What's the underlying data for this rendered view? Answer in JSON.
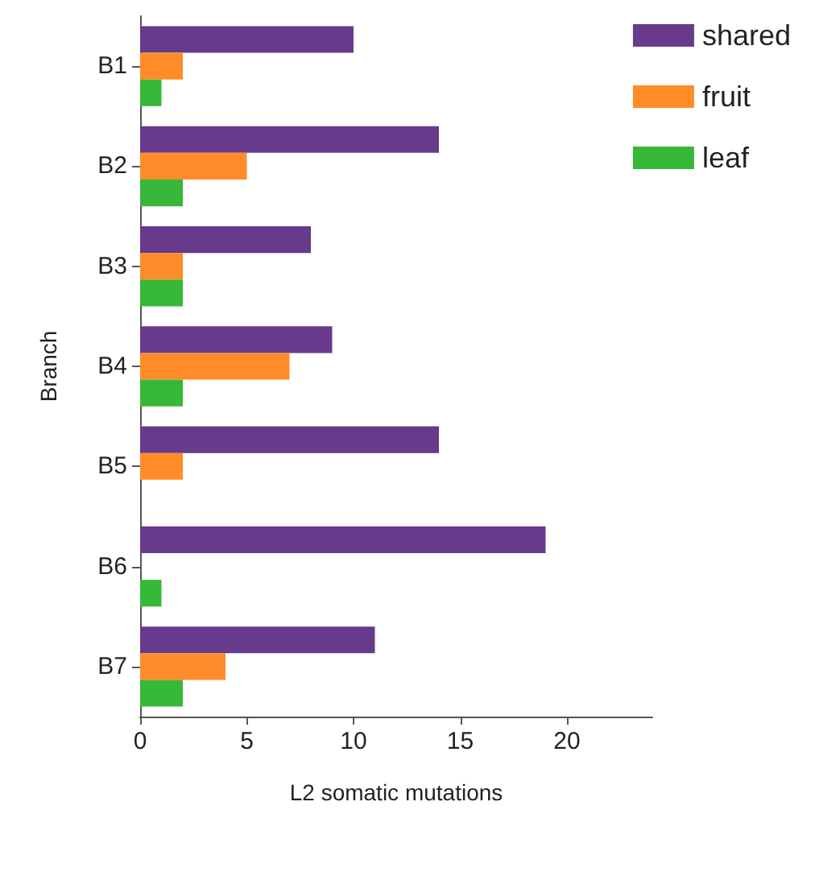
{
  "chart_data": {
    "type": "bar",
    "orientation": "horizontal",
    "xlabel": "L2 somatic mutations",
    "ylabel": "Branch",
    "categories": [
      "B1",
      "B2",
      "B3",
      "B4",
      "B5",
      "B6",
      "B7"
    ],
    "series": [
      {
        "name": "shared",
        "color": "#673a8b",
        "values": [
          10,
          14,
          8,
          9,
          14,
          19,
          11
        ]
      },
      {
        "name": "fruit",
        "color": "#ff8c28",
        "values": [
          2,
          5,
          2,
          7,
          2,
          0,
          4
        ]
      },
      {
        "name": "leaf",
        "color": "#38b838",
        "values": [
          1,
          2,
          2,
          2,
          0,
          1,
          2
        ]
      }
    ],
    "xlim": [
      0,
      24
    ],
    "xticks": [
      0,
      5,
      10,
      15,
      20
    ],
    "grid": false,
    "legend": "top right"
  }
}
